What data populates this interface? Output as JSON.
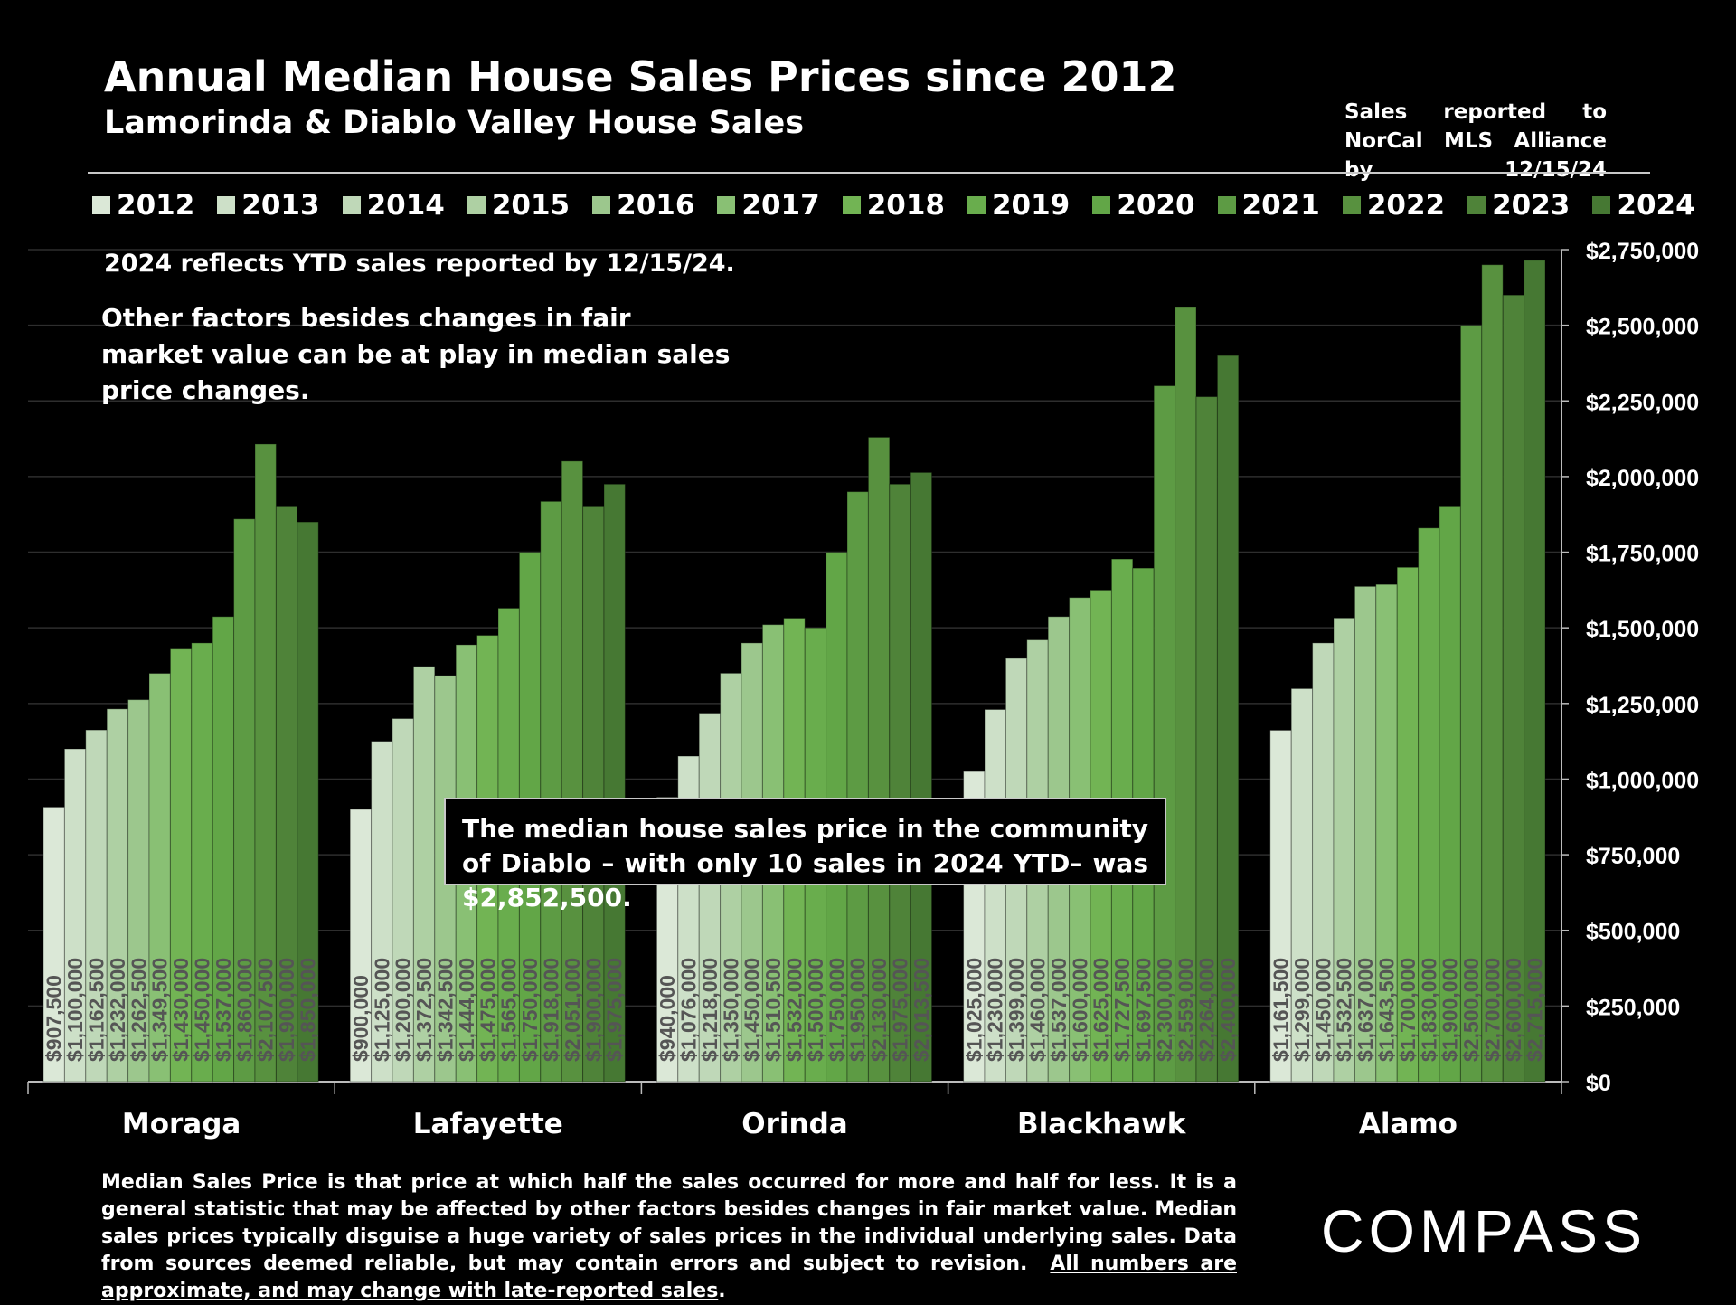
{
  "title": "Annual Median House Sales Prices since 2012",
  "subtitle": "Lamorinda & Diablo Valley House Sales",
  "source_note": "Sales reported to NorCal MLS Alliance by 12/15/24",
  "note_ytd": "2024 reflects YTD sales reported by 12/15/24.",
  "note_factors": "Other factors besides changes in fair market value can be at play in median sales price changes.",
  "callout": "The median house sales price in the community of Diablo – with only 10 sales in 2024 YTD– was $2,852,500.",
  "footnote": {
    "text": "Median Sales Price is that price at which half the sales occurred for more and half for less. It is a general statistic that may be affected by other factors besides changes in fair market value. Median sales prices typically disguise a huge variety of sales prices in the individual underlying sales. Data from sources deemed reliable, but may contain errors and subject to revision.",
    "underlined": "All numbers are approximate, and may change with late-reported sales",
    "end": "."
  },
  "logo_text": "COMPASS",
  "colors": [
    "#dbe8d7",
    "#cde0c8",
    "#bfd8b8",
    "#aed0a3",
    "#9cc78d",
    "#89c074",
    "#72b454",
    "#69ad4d",
    "#62a647",
    "#5d9b44",
    "#58913f",
    "#4f8339",
    "#467833"
  ],
  "chart_data": {
    "type": "bar",
    "categories": [
      "Moraga",
      "Lafayette",
      "Orinda",
      "Blackhawk",
      "Alamo"
    ],
    "series": [
      {
        "name": "2012",
        "values": [
          907500,
          900000,
          940000,
          1025000,
          1161500
        ]
      },
      {
        "name": "2013",
        "values": [
          1100000,
          1125000,
          1076000,
          1230000,
          1299000
        ]
      },
      {
        "name": "2014",
        "values": [
          1162500,
          1200000,
          1218000,
          1399000,
          1450000
        ]
      },
      {
        "name": "2015",
        "values": [
          1232000,
          1372500,
          1350000,
          1460000,
          1532500
        ]
      },
      {
        "name": "2016",
        "values": [
          1262500,
          1342500,
          1450000,
          1537000,
          1637000
        ]
      },
      {
        "name": "2017",
        "values": [
          1349500,
          1444000,
          1510500,
          1600000,
          1643500
        ]
      },
      {
        "name": "2018",
        "values": [
          1430000,
          1475000,
          1532000,
          1625000,
          1700000
        ]
      },
      {
        "name": "2019",
        "values": [
          1450000,
          1565000,
          1500000,
          1727500,
          1830000
        ]
      },
      {
        "name": "2020",
        "values": [
          1537000,
          1750000,
          1750000,
          1697500,
          1900000
        ]
      },
      {
        "name": "2021",
        "values": [
          1860000,
          1918000,
          1950000,
          2300000,
          2500000
        ]
      },
      {
        "name": "2022",
        "values": [
          2107500,
          2051000,
          2130000,
          2559000,
          2700000
        ]
      },
      {
        "name": "2023",
        "values": [
          1900000,
          1900000,
          1975000,
          2264000,
          2600000
        ]
      },
      {
        "name": "2024",
        "values": [
          1850000,
          1975000,
          2013500,
          2400000,
          2715000
        ]
      }
    ],
    "ylim": [
      0,
      2750000
    ],
    "y_ticks": [
      "$0",
      "$250,000",
      "$500,000",
      "$750,000",
      "$1,000,000",
      "$1,250,000",
      "$1,500,000",
      "$1,750,000",
      "$2,000,000",
      "$2,250,000",
      "$2,500,000",
      "$2,750,000"
    ],
    "value_labels": [
      [
        "$907,500",
        "$1,100,000",
        "$1,162,500",
        "$1,232,000",
        "$1,262,500",
        "$1,349,500",
        "$1,430,000",
        "$1,450,000",
        "$1,537,000",
        "$1,860,000",
        "$2,107,500",
        "$1,900,000",
        "$1,850,000"
      ],
      [
        "$900,000",
        "$1,125,000",
        "$1,200,000",
        "$1,372,500",
        "$1,342,500",
        "$1,444,000",
        "$1,475,000",
        "$1,565,000",
        "$1,750,000",
        "$1,918,000",
        "$2,051,000",
        "$1,900,000",
        "$1,975,000"
      ],
      [
        "$940,000",
        "$1,076,000",
        "$1,218,000",
        "$1,350,000",
        "$1,450,000",
        "$1,510,500",
        "$1,532,000",
        "$1,500,000",
        "$1,750,000",
        "$1,950,000",
        "$2,130,000",
        "$1,975,000",
        "$2,013,500"
      ],
      [
        "$1,025,000",
        "$1,230,000",
        "$1,399,000",
        "$1,460,000",
        "$1,537,000",
        "$1,600,000",
        "$1,625,000",
        "$1,727,500",
        "$1,697,500",
        "$2,300,000",
        "$2,559,000",
        "$2,264,000",
        "$2,400,000"
      ],
      [
        "$1,161,500",
        "$1,299,000",
        "$1,450,000",
        "$1,532,500",
        "$1,637,000",
        "$1,643,500",
        "$1,700,000",
        "$1,830,000",
        "$1,900,000",
        "$2,500,000",
        "$2,700,000",
        "$2,600,000",
        "$2,715,000"
      ]
    ],
    "grid": true,
    "legend_position": "top"
  }
}
